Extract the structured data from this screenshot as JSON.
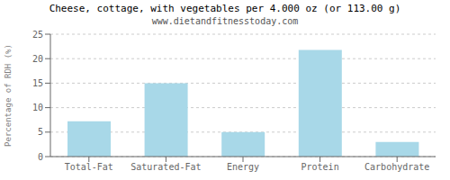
{
  "chart_data": {
    "type": "bar",
    "title": "Cheese, cottage, with vegetables per 4.000 oz (or 113.00 g)",
    "subtitle": "www.dietandfitnesstoday.com",
    "categories": [
      "Total-Fat",
      "Saturated-Fat",
      "Energy",
      "Protein",
      "Carbohydrate"
    ],
    "values": [
      7.2,
      15.0,
      5.0,
      21.8,
      3.0
    ],
    "color": "#a8d8e8",
    "ylabel": "Percentage of RDH (%)",
    "ylim": [
      0,
      25
    ],
    "yticks": [
      0,
      5,
      10,
      15,
      20,
      25
    ],
    "grid": true
  }
}
